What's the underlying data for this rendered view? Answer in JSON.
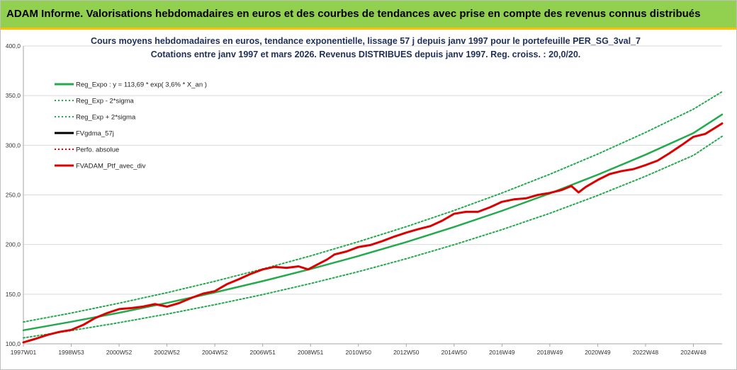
{
  "header": {
    "title": "ADAM Informe. Valorisations hebdomadaires en euros et des courbes de tendances avec prise en compte des revenus connus distribués"
  },
  "chart_data": {
    "type": "line",
    "title": "Cours moyens hebdomadaires  en euros, tendance exponentielle, lissage 57 j depuis janv 1997 pour le portefeuille PER_SG_3val_7",
    "subtitle": "Cotations  entre janv 1997 et mars 2026. Revenus DISTRIBUES depuis janv 1997. Reg. croiss. : 20,0/20.",
    "ylim": [
      100,
      400
    ],
    "yticks": [
      "100,0",
      "150,0",
      "200,0",
      "250,0",
      "300,0",
      "350,0",
      "400,0"
    ],
    "ytick_values": [
      100,
      150,
      200,
      250,
      300,
      350,
      400
    ],
    "xlim": [
      1997.0,
      2026.2
    ],
    "xticks": [
      "1997W01",
      "1998W53",
      "2000W52",
      "2002W52",
      "2004W52",
      "2006W51",
      "2008W51",
      "2010W50",
      "2012W50",
      "2014W50",
      "2016W49",
      "2018W49",
      "2020W49",
      "2022W48",
      "2024W48"
    ],
    "xtick_values": [
      1997.0,
      1999.0,
      2001.0,
      2003.0,
      2005.0,
      2007.0,
      2009.0,
      2011.0,
      2013.0,
      2015.0,
      2017.0,
      2019.0,
      2021.0,
      2023.0,
      2025.0
    ],
    "grid": "horizontal",
    "legend_position": "top-left",
    "legend": [
      {
        "label": "Reg_Expo : y = 113,69 * exp( 3,6% *  X_an )",
        "color": "#22aa4d",
        "style": "solid"
      },
      {
        "label": "Reg_Exp - 2*sigma",
        "color": "#22aa4d",
        "style": "dotted"
      },
      {
        "label": "Reg_Exp + 2*sigma",
        "color": "#22aa4d",
        "style": "dotted"
      },
      {
        "label": "FVgdma_57j",
        "color": "#000000",
        "style": "solid"
      },
      {
        "label": "Perfo. absolue",
        "color": "#dd0000",
        "style": "dotted"
      },
      {
        "label": "FVADAM_Ptf_avec_div",
        "color": "#dd0000",
        "style": "solid"
      }
    ],
    "series": [
      {
        "name": "Reg_Expo : y = 113,69 * exp( 3,6% *  X_an )",
        "x": [
          1997.0,
          1999.0,
          2001.0,
          2003.0,
          2005.0,
          2007.0,
          2009.0,
          2011.0,
          2013.0,
          2015.0,
          2017.0,
          2019.0,
          2021.0,
          2023.0,
          2025.0,
          2026.2
        ],
        "values": [
          113.7,
          122.2,
          131.3,
          141.2,
          151.7,
          163.1,
          175.3,
          188.4,
          202.5,
          217.7,
          234.0,
          251.5,
          270.3,
          290.5,
          312.3,
          331.0
        ]
      },
      {
        "name": "Reg_Exp - 2*sigma",
        "x": [
          1997.0,
          1999.0,
          2001.0,
          2003.0,
          2005.0,
          2007.0,
          2009.0,
          2011.0,
          2013.0,
          2015.0,
          2017.0,
          2019.0,
          2021.0,
          2023.0,
          2025.0,
          2026.2
        ],
        "values": [
          106.0,
          113.3,
          121.3,
          130.0,
          139.4,
          149.6,
          160.7,
          172.7,
          185.7,
          199.8,
          215.0,
          231.5,
          249.4,
          268.8,
          289.8,
          309.0
        ]
      },
      {
        "name": "Reg_Exp + 2*sigma",
        "x": [
          1997.0,
          1999.0,
          2001.0,
          2003.0,
          2005.0,
          2007.0,
          2009.0,
          2011.0,
          2013.0,
          2015.0,
          2017.0,
          2019.0,
          2021.0,
          2023.0,
          2025.0,
          2026.2
        ],
        "values": [
          122.0,
          131.0,
          141.0,
          151.5,
          163.0,
          175.4,
          188.6,
          202.8,
          218.0,
          234.3,
          251.9,
          270.8,
          291.1,
          312.9,
          336.4,
          354.0
        ]
      },
      {
        "name": "FVADAM_Ptf_avec_div",
        "x": [
          1997.0,
          1997.5,
          1998.0,
          1998.5,
          1999.0,
          1999.5,
          2000.0,
          2000.5,
          2001.0,
          2001.5,
          2002.0,
          2002.5,
          2003.0,
          2003.5,
          2004.0,
          2004.5,
          2005.0,
          2005.5,
          2006.0,
          2006.5,
          2007.0,
          2007.5,
          2008.0,
          2008.5,
          2008.9,
          2009.3,
          2009.7,
          2010.0,
          2010.5,
          2011.0,
          2011.5,
          2012.0,
          2012.5,
          2013.0,
          2013.5,
          2014.0,
          2014.5,
          2015.0,
          2015.5,
          2016.0,
          2016.5,
          2017.0,
          2017.5,
          2018.0,
          2018.5,
          2019.0,
          2019.5,
          2019.9,
          2020.2,
          2020.5,
          2021.0,
          2021.5,
          2022.0,
          2022.5,
          2023.0,
          2023.5,
          2024.0,
          2024.5,
          2025.0,
          2025.5,
          2026.2
        ],
        "values": [
          101.5,
          105.0,
          109.0,
          112.0,
          114.0,
          119.0,
          126.0,
          131.0,
          135.0,
          136.0,
          137.5,
          140.0,
          137.5,
          141.0,
          146.0,
          150.5,
          153.0,
          160.0,
          165.0,
          170.5,
          175.0,
          177.5,
          176.5,
          178.0,
          175.0,
          180.0,
          185.0,
          190.0,
          193.0,
          197.5,
          199.5,
          203.5,
          208.0,
          212.0,
          215.5,
          218.5,
          224.0,
          231.0,
          233.0,
          233.0,
          237.5,
          243.0,
          245.5,
          246.5,
          250.0,
          252.0,
          255.0,
          259.0,
          252.5,
          258.0,
          265.0,
          271.0,
          274.0,
          276.0,
          280.0,
          284.5,
          292.0,
          300.0,
          308.5,
          311.5,
          322.0
        ]
      }
    ]
  }
}
